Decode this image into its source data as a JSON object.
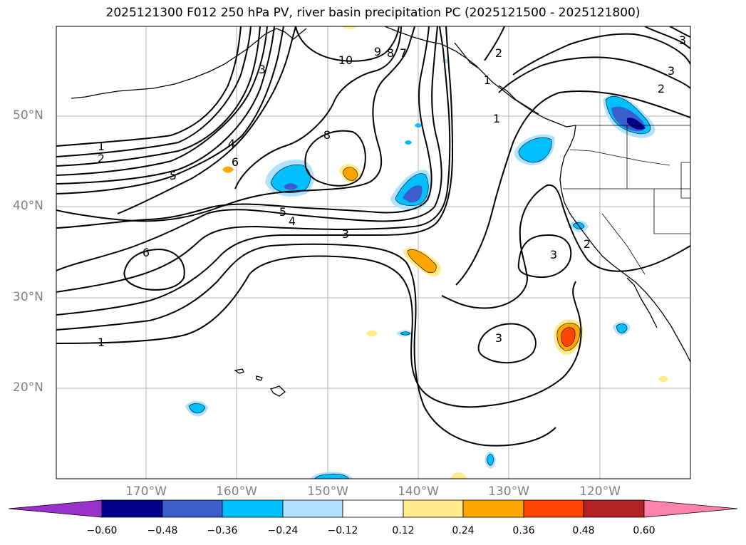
{
  "title": "2025121300 F012 250 hPa PV, river basin precipitation PC (2025121500 - 2025121800)",
  "map": {
    "lat_labels": [
      "50°N",
      "40°N",
      "30°N",
      "20°N"
    ],
    "lon_labels": [
      "170°W",
      "160°W",
      "150°W",
      "140°W",
      "130°W",
      "120°W"
    ],
    "contour_labels": [
      "10",
      "9",
      "8",
      "7",
      "3",
      "2",
      "1",
      "8",
      "4",
      "6",
      "1",
      "2",
      "5",
      "5",
      "4",
      "3",
      "6",
      "3",
      "1",
      "3",
      "2",
      "3",
      "2",
      "3",
      "1"
    ]
  },
  "colorbar": {
    "ticks": [
      "−0.60",
      "−0.48",
      "−0.36",
      "−0.24",
      "−0.12",
      "0.12",
      "0.24",
      "0.36",
      "0.48",
      "0.60"
    ],
    "colors": [
      "#9932cc",
      "#00008b",
      "#3a5fcd",
      "#00bfff",
      "#b0e2ff",
      "#ffffff",
      "#ffeb8c",
      "#ffa500",
      "#ff4500",
      "#b22222",
      "#ff82ab"
    ]
  }
}
